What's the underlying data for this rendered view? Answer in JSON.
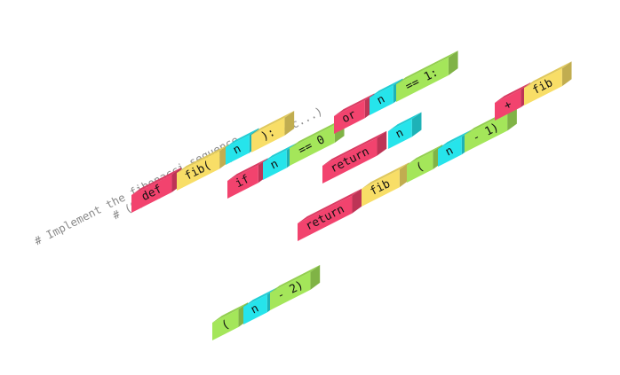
{
  "comments": {
    "line1": "# Implement the fibonacci sequence",
    "line2": "# (0, 1, 1, 2, 3, 5, 8, 13, etc...)"
  },
  "colors": {
    "pink": "#f2436e",
    "yellow": "#f8de67",
    "cyan": "#26e4eb",
    "green": "#a4e65a"
  },
  "blocks": [
    {
      "id": "def",
      "text": "def",
      "color": "pink"
    },
    {
      "id": "fib-open",
      "text": "fib(",
      "color": "yellow"
    },
    {
      "id": "n-1",
      "text": "n",
      "color": "cyan"
    },
    {
      "id": "close-colon",
      "text": "):",
      "color": "yellow"
    },
    {
      "id": "if",
      "text": "if",
      "color": "pink"
    },
    {
      "id": "n-2",
      "text": "n",
      "color": "cyan"
    },
    {
      "id": "eq-0",
      "text": "== 0",
      "color": "green"
    },
    {
      "id": "or",
      "text": "or",
      "color": "pink"
    },
    {
      "id": "n-3",
      "text": "n",
      "color": "cyan"
    },
    {
      "id": "eq-1",
      "text": "== 1:",
      "color": "green"
    },
    {
      "id": "return-1",
      "text": "return",
      "color": "pink"
    },
    {
      "id": "n-4",
      "text": "n",
      "color": "cyan"
    },
    {
      "id": "return-2",
      "text": "return",
      "color": "pink"
    },
    {
      "id": "fib-1",
      "text": "fib",
      "color": "yellow"
    },
    {
      "id": "paren-1",
      "text": "(",
      "color": "green"
    },
    {
      "id": "n-5",
      "text": "n",
      "color": "cyan"
    },
    {
      "id": "minus-1",
      "text": "- 1)",
      "color": "green"
    },
    {
      "id": "plus",
      "text": "+",
      "color": "pink"
    },
    {
      "id": "fib-2",
      "text": "fib",
      "color": "yellow"
    },
    {
      "id": "paren-2",
      "text": "(",
      "color": "green"
    },
    {
      "id": "n-6",
      "text": "n",
      "color": "cyan"
    },
    {
      "id": "minus-2",
      "text": "- 2)",
      "color": "green"
    }
  ]
}
